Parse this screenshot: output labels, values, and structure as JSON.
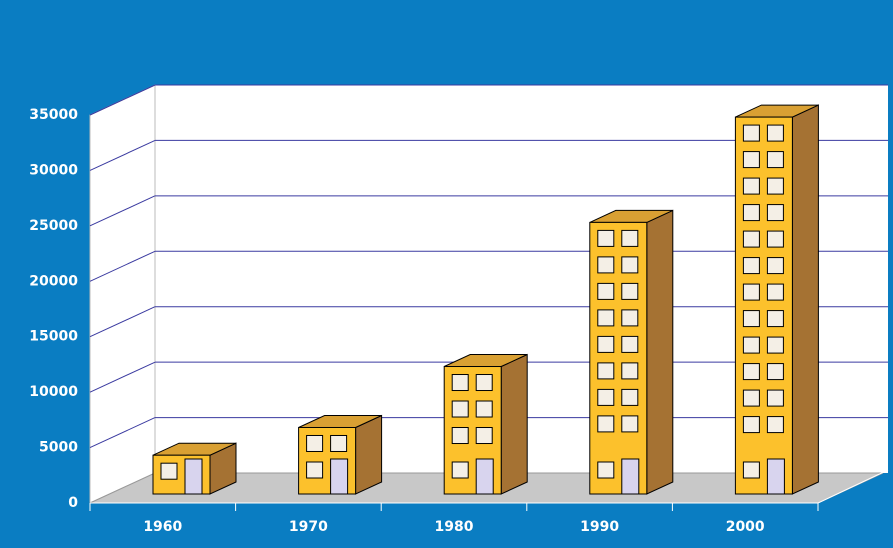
{
  "chart_data": {
    "type": "bar3d",
    "categories": [
      "1960",
      "1970",
      "1980",
      "1990",
      "2000"
    ],
    "values": [
      3500,
      6000,
      11500,
      24500,
      34000
    ],
    "color": "#fcc12c",
    "ylim": [
      0,
      35000
    ],
    "yticks": [
      0,
      5000,
      10000,
      15000,
      20000,
      25000,
      30000,
      35000
    ],
    "grid": true
  }
}
